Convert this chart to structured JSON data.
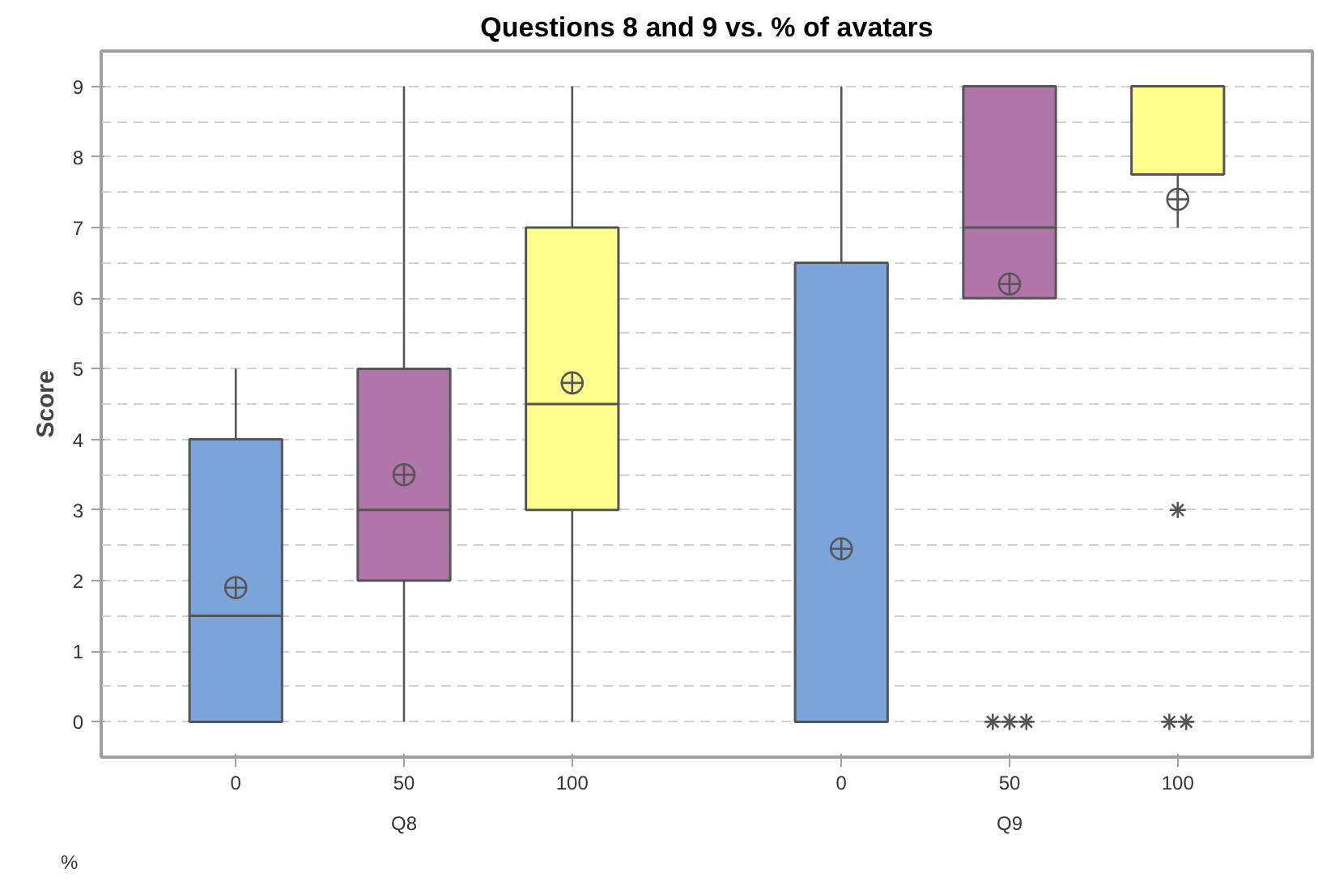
{
  "chart_data": {
    "type": "box",
    "title": "Questions 8 and 9 vs. % of avatars",
    "ylabel": "Score",
    "categories": [
      "0",
      "50",
      "100",
      "0",
      "50",
      "100"
    ],
    "colors": [
      "#7ba5d8",
      "#b075a9",
      "#ffff8c",
      "#7ba5d8",
      "#b075a9",
      "#ffff8c"
    ],
    "boxes": [
      {
        "low": 0,
        "q1": 0,
        "median": 1.5,
        "q3": 4,
        "high": 5,
        "mean": 1.9
      },
      {
        "low": 0,
        "q1": 2,
        "median": 3,
        "q3": 5,
        "high": 9,
        "mean": 3.5
      },
      {
        "low": 0,
        "q1": 3,
        "median": 4.5,
        "q3": 7,
        "high": 9,
        "mean": 4.8
      },
      {
        "low": 0,
        "q1": 0,
        "median": 0,
        "q3": 6.5,
        "high": 9,
        "mean": 2.45
      },
      {
        "low": 6,
        "q1": 6,
        "median": 7,
        "q3": 9,
        "high": 9,
        "mean": 6.2,
        "outliers": [
          0,
          0,
          0
        ]
      },
      {
        "low": 7,
        "q1": 7.75,
        "median": 9,
        "q3": 9,
        "high": 9,
        "mean": 7.4,
        "outliers": [
          3,
          0,
          0
        ]
      }
    ],
    "annotations": [
      "%",
      "Q8",
      "Q9"
    ],
    "ylim": [
      -0.5,
      9.5
    ],
    "yticks": [
      0,
      1,
      2,
      3,
      4,
      5,
      6,
      7,
      8,
      9
    ],
    "grid": "y",
    "marker": "circle"
  }
}
